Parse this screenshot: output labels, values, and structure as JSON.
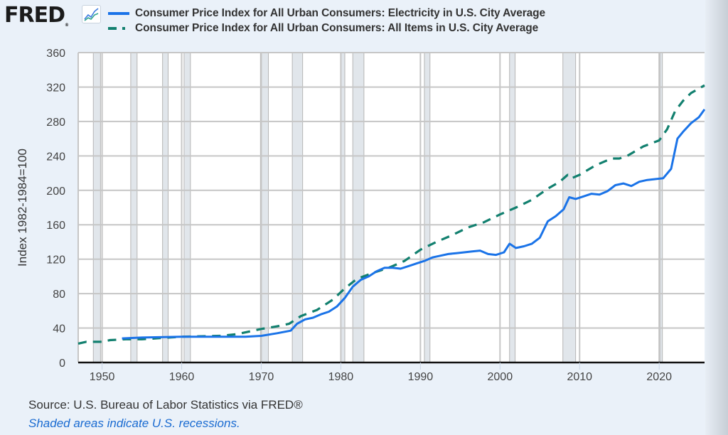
{
  "header": {
    "logo_text": "FRED",
    "logo_registered": "®",
    "logo_icon": "line-chart-icon"
  },
  "footer": {
    "source": "Source: U.S. Bureau of Labor Statistics via FRED®",
    "note": "Shaded areas indicate U.S. recessions."
  },
  "colors": {
    "electricity": "#1a73e8",
    "all_items": "#12806f",
    "recession": "#e1e6eb",
    "grid": "#c6c6c6",
    "background": "#eaf1f9"
  },
  "chart_data": {
    "type": "line",
    "title": "",
    "xlabel": "",
    "ylabel": "Index 1982-1984=100",
    "xlim": [
      1947.0,
      2025.7
    ],
    "ylim": [
      0,
      360
    ],
    "xticks": [
      1950,
      1960,
      1970,
      1980,
      1990,
      2000,
      2010,
      2020
    ],
    "yticks": [
      0,
      40,
      80,
      120,
      160,
      200,
      240,
      280,
      320,
      360
    ],
    "grid": true,
    "legend_position": "top",
    "recessions": [
      [
        1948.9,
        1949.8
      ],
      [
        1953.6,
        1954.4
      ],
      [
        1957.6,
        1958.3
      ],
      [
        1960.3,
        1961.1
      ],
      [
        1969.9,
        1970.9
      ],
      [
        1973.9,
        1975.2
      ],
      [
        1980.0,
        1980.5
      ],
      [
        1981.5,
        1982.9
      ],
      [
        1990.5,
        1991.2
      ],
      [
        2001.2,
        2001.9
      ],
      [
        2007.9,
        2009.5
      ],
      [
        2020.1,
        2020.4
      ]
    ],
    "series": [
      {
        "name": "Consumer Price Index for All Urban Consumers: Electricity in U.S. City Average",
        "style": "solid",
        "points": [
          [
            1952.5,
            28
          ],
          [
            1955,
            29
          ],
          [
            1960,
            30
          ],
          [
            1965,
            30
          ],
          [
            1968,
            30
          ],
          [
            1970,
            31
          ],
          [
            1972,
            34
          ],
          [
            1973.7,
            37
          ],
          [
            1974.5,
            45
          ],
          [
            1975.5,
            50
          ],
          [
            1976.5,
            52
          ],
          [
            1977.5,
            56
          ],
          [
            1978.5,
            59
          ],
          [
            1979.5,
            65
          ],
          [
            1980.5,
            75
          ],
          [
            1981.5,
            88
          ],
          [
            1982.5,
            96
          ],
          [
            1983.5,
            100
          ],
          [
            1984.5,
            106
          ],
          [
            1985.5,
            110
          ],
          [
            1986.5,
            110
          ],
          [
            1987.5,
            109
          ],
          [
            1988.5,
            112
          ],
          [
            1989.5,
            115
          ],
          [
            1990.5,
            118
          ],
          [
            1991.5,
            122
          ],
          [
            1992.5,
            124
          ],
          [
            1993.5,
            126
          ],
          [
            1994.5,
            127
          ],
          [
            1995.5,
            128
          ],
          [
            1996.5,
            129
          ],
          [
            1997.5,
            130
          ],
          [
            1998.5,
            126
          ],
          [
            1999.5,
            125
          ],
          [
            2000.5,
            128
          ],
          [
            2001.2,
            138
          ],
          [
            2002,
            133
          ],
          [
            2003,
            135
          ],
          [
            2004,
            138
          ],
          [
            2005,
            145
          ],
          [
            2006,
            164
          ],
          [
            2007,
            170
          ],
          [
            2008,
            178
          ],
          [
            2008.7,
            192
          ],
          [
            2009.5,
            190
          ],
          [
            2010.5,
            193
          ],
          [
            2011.5,
            196
          ],
          [
            2012.5,
            195
          ],
          [
            2013.5,
            199
          ],
          [
            2014.5,
            206
          ],
          [
            2015.5,
            208
          ],
          [
            2016.5,
            205
          ],
          [
            2017.5,
            210
          ],
          [
            2018.5,
            212
          ],
          [
            2019.5,
            213
          ],
          [
            2020.5,
            214
          ],
          [
            2021.5,
            225
          ],
          [
            2022.3,
            260
          ],
          [
            2023,
            268
          ],
          [
            2024,
            278
          ],
          [
            2025,
            285
          ],
          [
            2025.7,
            294
          ]
        ]
      },
      {
        "name": "Consumer Price Index for All Urban Consumers: All Items in U.S. City Average",
        "style": "dashed",
        "points": [
          [
            1947,
            22
          ],
          [
            1948,
            24
          ],
          [
            1950,
            24
          ],
          [
            1951,
            26
          ],
          [
            1953,
            27
          ],
          [
            1955,
            27
          ],
          [
            1960,
            30
          ],
          [
            1965,
            31
          ],
          [
            1967,
            33
          ],
          [
            1970,
            39
          ],
          [
            1972,
            42
          ],
          [
            1973.5,
            45
          ],
          [
            1975,
            54
          ],
          [
            1977,
            61
          ],
          [
            1979,
            73
          ],
          [
            1980.5,
            86
          ],
          [
            1982,
            97
          ],
          [
            1984,
            104
          ],
          [
            1986,
            110
          ],
          [
            1988,
            118
          ],
          [
            1990,
            131
          ],
          [
            1992,
            140
          ],
          [
            1994,
            148
          ],
          [
            1996,
            157
          ],
          [
            1998,
            163
          ],
          [
            2000,
            172
          ],
          [
            2002,
            180
          ],
          [
            2004,
            189
          ],
          [
            2006,
            202
          ],
          [
            2007.5,
            210
          ],
          [
            2008.5,
            218
          ],
          [
            2009,
            214
          ],
          [
            2010,
            218
          ],
          [
            2012,
            229
          ],
          [
            2014,
            237
          ],
          [
            2015,
            237
          ],
          [
            2016,
            240
          ],
          [
            2018,
            251
          ],
          [
            2020,
            258
          ],
          [
            2021,
            271
          ],
          [
            2022,
            292
          ],
          [
            2023,
            304
          ],
          [
            2024,
            313
          ],
          [
            2025.7,
            322
          ]
        ]
      }
    ]
  }
}
